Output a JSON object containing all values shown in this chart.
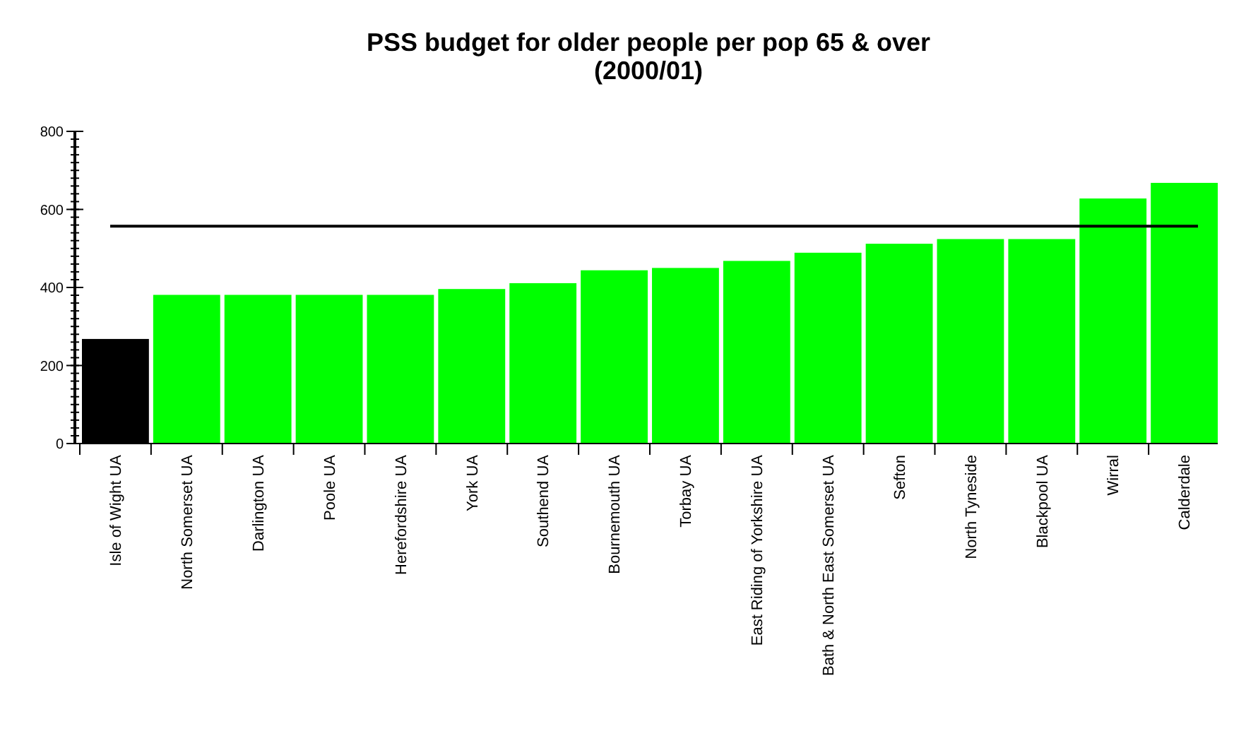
{
  "chart_data": {
    "type": "bar",
    "title": "PSS budget for older people per pop 65 & over\n(2000/01)",
    "categories": [
      "Isle of Wight UA",
      "North Somerset UA",
      "Darlington UA",
      "Poole UA",
      "Herefordshire UA",
      "York UA",
      "Southend UA",
      "Bournemouth UA",
      "Torbay UA",
      "East Riding of Yorkshire UA",
      "Bath & North East Somerset UA",
      "Sefton",
      "North Tyneside",
      "Blackpool UA",
      "Wirral",
      "Calderdale"
    ],
    "values": [
      268,
      381,
      381,
      381,
      381,
      396,
      411,
      444,
      450,
      468,
      489,
      512,
      524,
      524,
      628,
      668
    ],
    "colors": [
      "#000000",
      "#00ff00",
      "#00ff00",
      "#00ff00",
      "#00ff00",
      "#00ff00",
      "#00ff00",
      "#00ff00",
      "#00ff00",
      "#00ff00",
      "#00ff00",
      "#00ff00",
      "#00ff00",
      "#00ff00",
      "#00ff00",
      "#00ff00"
    ],
    "ylim": [
      0,
      800
    ],
    "yticks": [
      0,
      200,
      400,
      600,
      800
    ],
    "ref_lines": [
      {
        "axis": "y",
        "value": 557,
        "color": "#000000"
      }
    ]
  }
}
